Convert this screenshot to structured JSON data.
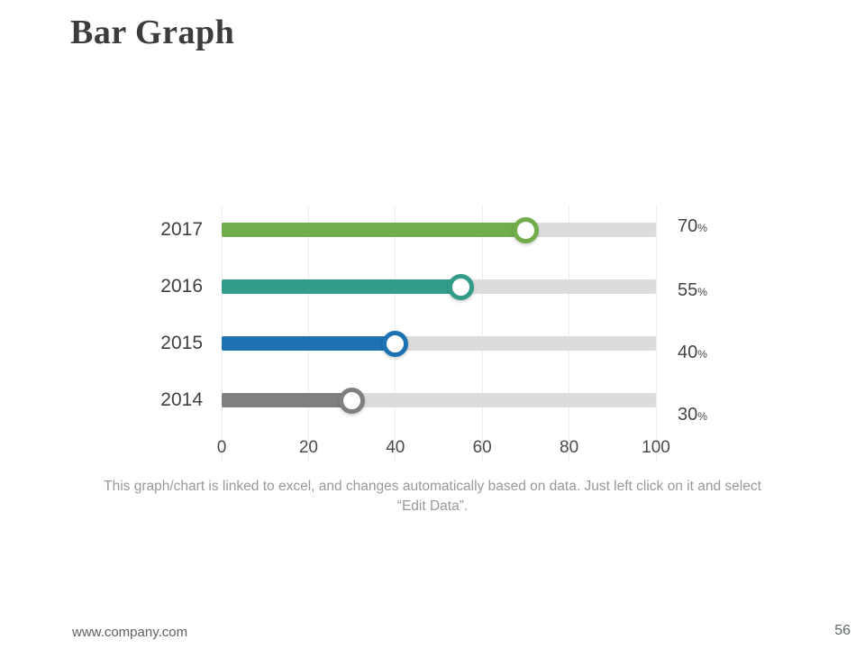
{
  "header": {
    "title": "Bar Graph"
  },
  "chart_data": {
    "type": "bar",
    "orientation": "horizontal",
    "categories": [
      "2017",
      "2016",
      "2015",
      "2014"
    ],
    "values": [
      70,
      55,
      40,
      30
    ],
    "value_labels": [
      "70",
      "55",
      "40",
      "30"
    ],
    "unit": "%",
    "xlim": [
      0,
      100
    ],
    "x_ticks": [
      0,
      20,
      40,
      60,
      80,
      100
    ],
    "bar_colors": [
      "#72ad4c",
      "#339c89",
      "#1c72b2",
      "#7f7f7f"
    ],
    "track_color": "#dcdcdc",
    "grid": true,
    "legend": "none",
    "title": "",
    "xlabel": "",
    "ylabel": ""
  },
  "caption": {
    "line1": "This graph/chart is linked to excel, and changes automatically based on data. Just left click on it and select",
    "line2": "“Edit Data”."
  },
  "footer": {
    "website": "www.company.com",
    "page_number": "56"
  }
}
